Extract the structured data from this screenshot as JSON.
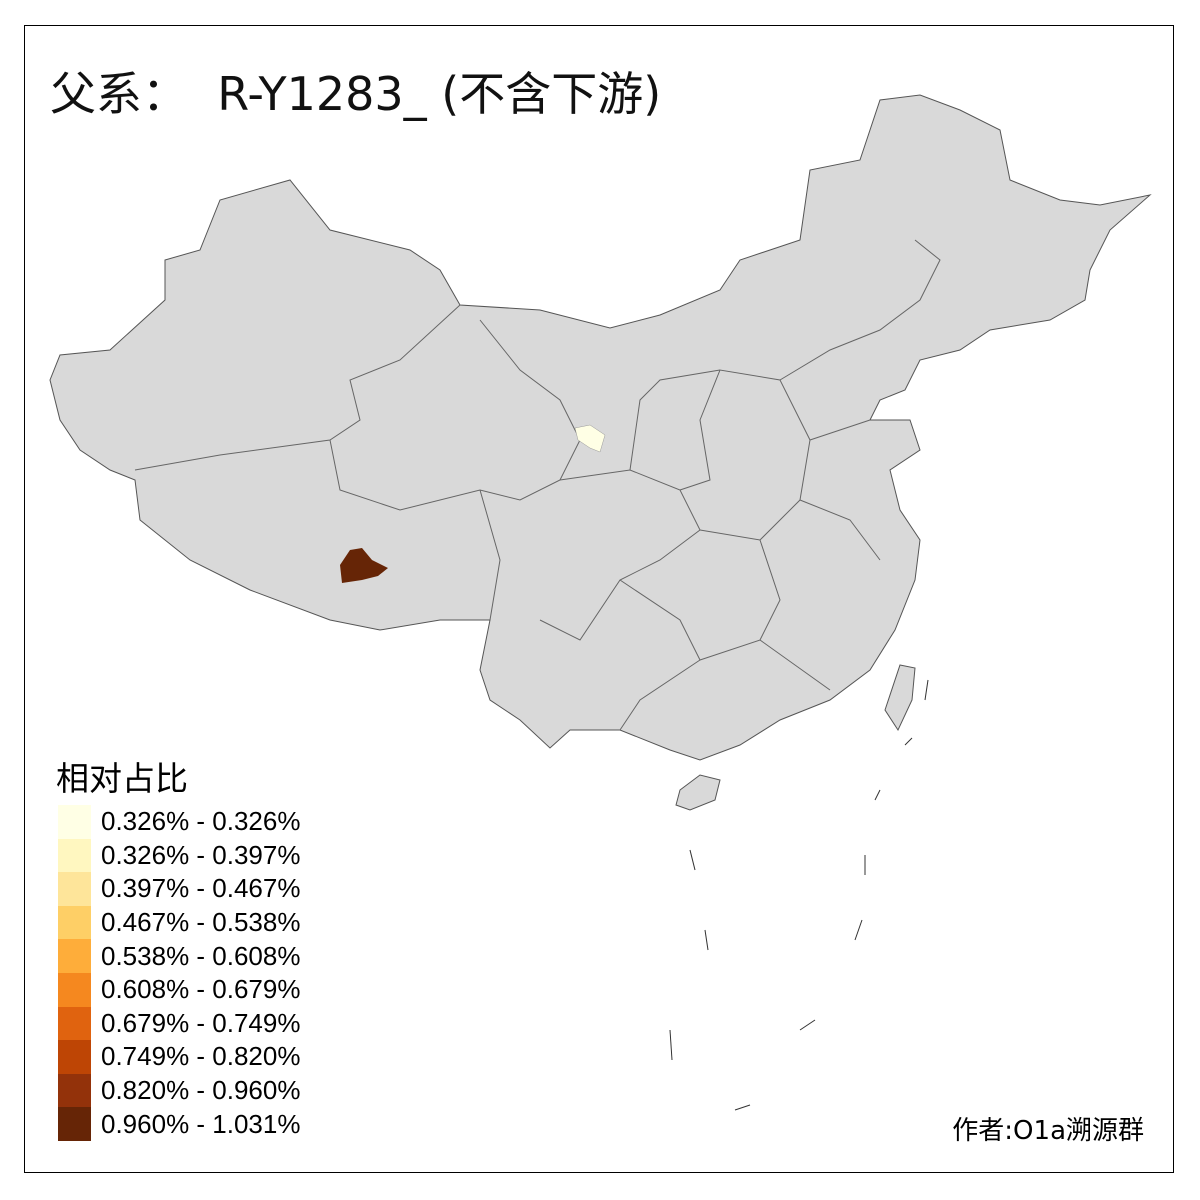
{
  "title": "父系：  R-Y1283_ (不含下游)",
  "legend": {
    "title": "相对占比",
    "items": [
      {
        "label": "0.326% - 0.326%",
        "color": "#FFFFE5"
      },
      {
        "label": "0.326% - 0.397%",
        "color": "#FFF7C0"
      },
      {
        "label": "0.397% - 0.467%",
        "color": "#FEE59A"
      },
      {
        "label": "0.467% - 0.538%",
        "color": "#FECF66"
      },
      {
        "label": "0.538% - 0.608%",
        "color": "#FEAD3A"
      },
      {
        "label": "0.608% - 0.679%",
        "color": "#F5881F"
      },
      {
        "label": "0.679% - 0.749%",
        "color": "#E0630F"
      },
      {
        "label": "0.749% - 0.820%",
        "color": "#BE4505"
      },
      {
        "label": "0.820% - 0.960%",
        "color": "#93320A"
      },
      {
        "label": "0.960% - 1.031%",
        "color": "#662506"
      }
    ]
  },
  "map": {
    "base_color": "#D9D9D9",
    "border_color": "#555555",
    "highlighted_regions": [
      {
        "class": "0.326% - 0.326%",
        "color": "#FFFFE5"
      },
      {
        "class": "0.960% - 1.031%",
        "color": "#662506"
      }
    ]
  },
  "author": "作者:O1a溯源群"
}
